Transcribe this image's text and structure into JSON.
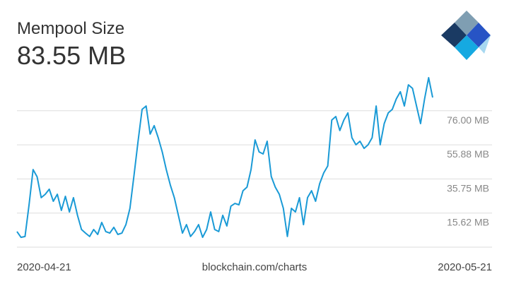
{
  "chart_data": {
    "type": "line",
    "title": "Mempool Size",
    "subtitle": "83.55 MB",
    "source": "blockchain.com/charts",
    "x_labels": [
      "2020-04-21",
      "2020-05-21"
    ],
    "series": [
      {
        "name": "Mempool Size",
        "color": "#1a9ad6",
        "values": [
          4.7,
          1.3,
          1.8,
          20.5,
          41.3,
          37,
          24.7,
          26.7,
          29.7,
          22.6,
          26.7,
          17.2,
          25.5,
          16.3,
          24.7,
          14.3,
          5.9,
          3.8,
          1.8,
          5.9,
          3,
          10.1,
          4.7,
          3.8,
          7.2,
          3,
          3.8,
          8.8,
          18.4,
          38,
          58,
          76.8,
          78.8,
          62.2,
          67.2,
          60.1,
          51.7,
          41.3,
          32.2,
          24.7,
          14.3,
          3.8,
          8.8,
          1.8,
          4.7,
          8.8,
          1.3,
          5.9,
          16.3,
          5.9,
          4.7,
          14.3,
          8,
          19.7,
          21.3,
          20.5,
          28.8,
          30.9,
          41.3,
          58.8,
          51.7,
          50.5,
          58,
          37.2,
          30.9,
          26.7,
          18.4,
          1.8,
          18.4,
          16.3,
          24.7,
          8.8,
          24.7,
          28.8,
          22.6,
          33,
          39.3,
          43.4,
          70.5,
          72.6,
          64.3,
          70.5,
          74.7,
          60.1,
          55.9,
          58,
          53.8,
          55.9,
          60.1,
          78.8,
          55.9,
          68.4,
          74.7,
          76.8,
          83,
          87.2,
          78.8,
          91.3,
          89.2,
          78.8,
          68.4,
          83,
          95.5,
          83.8
        ]
      }
    ],
    "ylim": [
      -4.5,
      100
    ],
    "yticks": [
      {
        "value": 76,
        "label": "76.00 MB"
      },
      {
        "value": 55.88,
        "label": "55.88 MB"
      },
      {
        "value": 35.75,
        "label": "35.75 MB"
      },
      {
        "value": 15.62,
        "label": "15.62 MB"
      }
    ],
    "grid": true
  }
}
